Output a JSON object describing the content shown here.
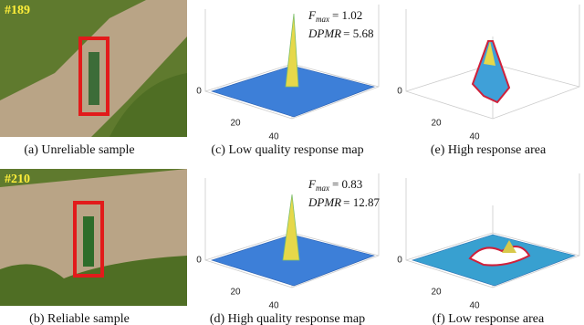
{
  "rows": [
    {
      "frame": "#189",
      "sample_caption": "(a) Unreliable sample",
      "map": {
        "caption": "(c) Low quality response map",
        "f_label": "F",
        "f_sub": "max",
        "f_value": "= 1.02",
        "dpmr_label": "DPMR",
        "dpmr_value": "= 5.68",
        "ticks": [
          "0",
          "20",
          "40"
        ]
      },
      "area": {
        "caption": "(e) High response area",
        "ticks": [
          "0",
          "20",
          "40"
        ]
      }
    },
    {
      "frame": "#210",
      "sample_caption": "(b) Reliable sample",
      "map": {
        "caption": "(d) High quality response map",
        "f_label": "F",
        "f_sub": "max",
        "f_value": "= 0.83",
        "dpmr_label": "DPMR",
        "dpmr_value": "= 12.87",
        "ticks": [
          "0",
          "20",
          "40"
        ]
      },
      "area": {
        "caption": "(f) Low response area",
        "ticks": [
          "0",
          "20",
          "40"
        ]
      }
    }
  ]
}
